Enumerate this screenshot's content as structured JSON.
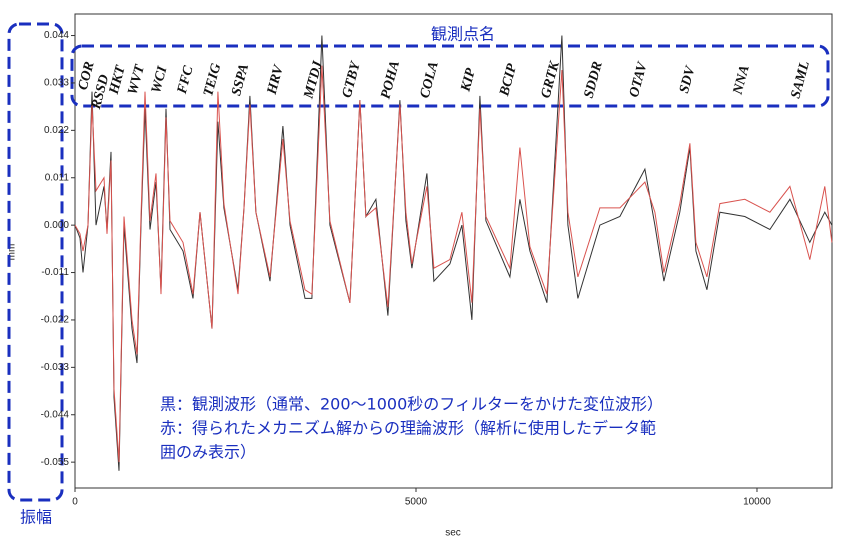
{
  "chart_data": {
    "type": "line",
    "x_label": "sec",
    "y_label": "mm",
    "x": [
      0,
      73,
      117,
      191,
      249,
      308,
      425,
      469,
      528,
      572,
      645,
      718,
      836,
      909,
      968,
      1026,
      1100,
      1187,
      1261,
      1334,
      1393,
      1583,
      1730,
      1833,
      2009,
      2096,
      2184,
      2390,
      2478,
      2565,
      2653,
      2859,
      3049,
      3152,
      3372,
      3474,
      3621,
      3738,
      4031,
      4178,
      4266,
      4412,
      4588,
      4764,
      4852,
      4940,
      5160,
      5263,
      5497,
      5673,
      5820,
      5937,
      6025,
      6377,
      6523,
      6670,
      6919,
      7139,
      7227,
      7374,
      7697,
      7990,
      8356,
      8503,
      8635,
      8869,
      9016,
      9104,
      9265,
      9456,
      9822,
      10189,
      10482,
      10775,
      10995,
      11098
    ],
    "series": [
      {
        "color": "#333333",
        "values": [
          0,
          -0.003,
          -0.011,
          0,
          0.031,
          0,
          0.009,
          -0.001,
          0.017,
          -0.04,
          -0.057,
          0,
          -0.024,
          -0.032,
          0,
          0.027,
          -0.001,
          0.01,
          -0.015,
          0.027,
          -0.001,
          -0.006,
          -0.017,
          0.003,
          -0.024,
          0.024,
          0.004,
          -0.015,
          0.004,
          0.03,
          0.003,
          -0.013,
          0.023,
          0,
          -0.017,
          -0.017,
          0.044,
          0,
          -0.018,
          0.029,
          0.002,
          0.006,
          -0.021,
          0.029,
          0.001,
          -0.01,
          0.012,
          -0.013,
          -0.009,
          0,
          -0.022,
          0.03,
          0.001,
          -0.012,
          0.006,
          -0.006,
          -0.018,
          0.044,
          0,
          -0.017,
          0,
          0.002,
          0.013,
          0,
          -0.013,
          0.003,
          0.018,
          -0.006,
          -0.015,
          0.003,
          0.002,
          -0.001,
          0.006,
          -0.004,
          0.003,
          0
        ]
      },
      {
        "color": "#d9534f",
        "values": [
          0,
          -0.002,
          -0.006,
          0,
          0.028,
          0.008,
          0.011,
          -0.002,
          0.015,
          -0.038,
          -0.055,
          0.002,
          -0.022,
          -0.03,
          0.002,
          0.031,
          0.001,
          0.012,
          -0.016,
          0.025,
          0.001,
          -0.004,
          -0.016,
          0.003,
          -0.024,
          0.031,
          0.005,
          -0.016,
          0.004,
          0.028,
          0.003,
          -0.012,
          0.02,
          0.001,
          -0.015,
          -0.016,
          0.037,
          0.001,
          -0.018,
          0.029,
          0.002,
          0.004,
          -0.019,
          0.028,
          0.003,
          -0.009,
          0.009,
          -0.01,
          -0.008,
          0.003,
          -0.018,
          0.027,
          0.002,
          -0.01,
          0.018,
          -0.005,
          -0.016,
          0.036,
          0.003,
          -0.012,
          0.004,
          0.004,
          0.01,
          0.003,
          -0.011,
          0.005,
          0.019,
          -0.004,
          -0.012,
          0.005,
          0.006,
          0.003,
          0.009,
          -0.008,
          0.009,
          -0.004
        ]
      }
    ],
    "xlim": [
      0,
      11100
    ],
    "xticks": [
      0,
      5000,
      10000
    ],
    "ylim": [
      -0.061,
      0.049
    ],
    "yticks": [
      0.044,
      0.033,
      0.022,
      0.011,
      {
        "value": 0,
        "label": "0.000"
      },
      -0.011,
      -0.022,
      -0.033,
      -0.044,
      -0.055
    ],
    "annotations": {
      "station_title": "観測点名",
      "stations": [
        "COR",
        "RSSD",
        "HKT",
        "WVT",
        "WCI",
        "FFC",
        "TEIG",
        "SSPA",
        "HRV",
        "MTDJ",
        "GTBY",
        "POHA",
        "COLA",
        "KIP",
        "BCIP",
        "GRTK",
        "SDDR",
        "OTAV",
        "SDV",
        "NNA",
        "SAML"
      ],
      "legend_lines": [
        "黒：観測波形（通常、200～1000秒のフィルターをかけた変位波形）",
        "赤：得られたメカニズム解からの理論波形（解析に使用したデータ範",
        "囲のみ表示）"
      ],
      "amplitude": "振幅"
    }
  }
}
